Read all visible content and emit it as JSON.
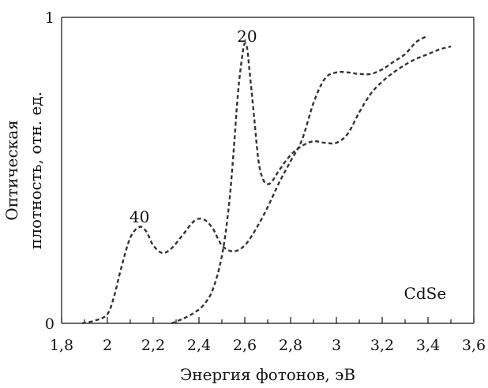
{
  "chart_data": {
    "type": "line",
    "title": "",
    "xlabel": "Энергия фотонов, эВ",
    "ylabel": [
      "Оптическая",
      "плотность, отн. ед."
    ],
    "xlim": [
      1.8,
      3.6
    ],
    "ylim": [
      0,
      1
    ],
    "x_ticks": [
      1.8,
      2.0,
      2.2,
      2.4,
      2.6,
      2.8,
      3.0,
      3.2,
      3.4,
      3.6
    ],
    "x_tick_labels": [
      "1,8",
      "2",
      "2,2",
      "2,4",
      "2,6",
      "2,8",
      "3",
      "3,2",
      "3,4",
      "3,6"
    ],
    "y_tick_labels": [
      {
        "value": 0,
        "label": "0"
      },
      {
        "value": 1,
        "label": "1"
      }
    ],
    "grid": false,
    "line_style": "dashed",
    "line_color": "#333333",
    "annotations": [
      {
        "text": "40",
        "x": 2.14,
        "y": 0.33
      },
      {
        "text": "20",
        "x": 2.61,
        "y": 0.92
      },
      {
        "text": "CdSe",
        "x": 3.48,
        "y": 0.08
      }
    ],
    "series": [
      {
        "label": "40",
        "x": [
          1.89,
          1.95,
          2.0,
          2.03,
          2.06,
          2.1,
          2.14,
          2.17,
          2.2,
          2.24,
          2.28,
          2.33,
          2.38,
          2.42,
          2.46,
          2.5,
          2.55,
          2.6,
          2.65,
          2.7,
          2.75,
          2.8,
          2.85,
          2.9,
          2.95,
          3.0,
          3.05,
          3.1,
          3.15,
          3.2,
          3.25,
          3.3,
          3.35,
          3.4
        ],
        "y": [
          0.0,
          0.01,
          0.03,
          0.09,
          0.18,
          0.28,
          0.315,
          0.3,
          0.255,
          0.23,
          0.245,
          0.29,
          0.335,
          0.34,
          0.31,
          0.255,
          0.235,
          0.255,
          0.31,
          0.38,
          0.46,
          0.53,
          0.6,
          0.72,
          0.8,
          0.82,
          0.82,
          0.815,
          0.815,
          0.83,
          0.855,
          0.88,
          0.92,
          0.94
        ]
      },
      {
        "label": "20",
        "x": [
          2.28,
          2.33,
          2.38,
          2.42,
          2.46,
          2.5,
          2.53,
          2.55,
          2.57,
          2.59,
          2.6,
          2.61,
          2.62,
          2.64,
          2.66,
          2.68,
          2.7,
          2.72,
          2.75,
          2.8,
          2.85,
          2.9,
          2.95,
          3.0,
          3.05,
          3.1,
          3.15,
          3.2,
          3.25,
          3.3,
          3.35,
          3.4,
          3.45,
          3.5
        ],
        "y": [
          0.0,
          0.015,
          0.035,
          0.06,
          0.11,
          0.22,
          0.38,
          0.55,
          0.75,
          0.88,
          0.915,
          0.9,
          0.83,
          0.68,
          0.53,
          0.47,
          0.455,
          0.465,
          0.5,
          0.55,
          0.58,
          0.595,
          0.59,
          0.59,
          0.62,
          0.69,
          0.75,
          0.79,
          0.82,
          0.845,
          0.865,
          0.88,
          0.895,
          0.905
        ]
      }
    ]
  }
}
